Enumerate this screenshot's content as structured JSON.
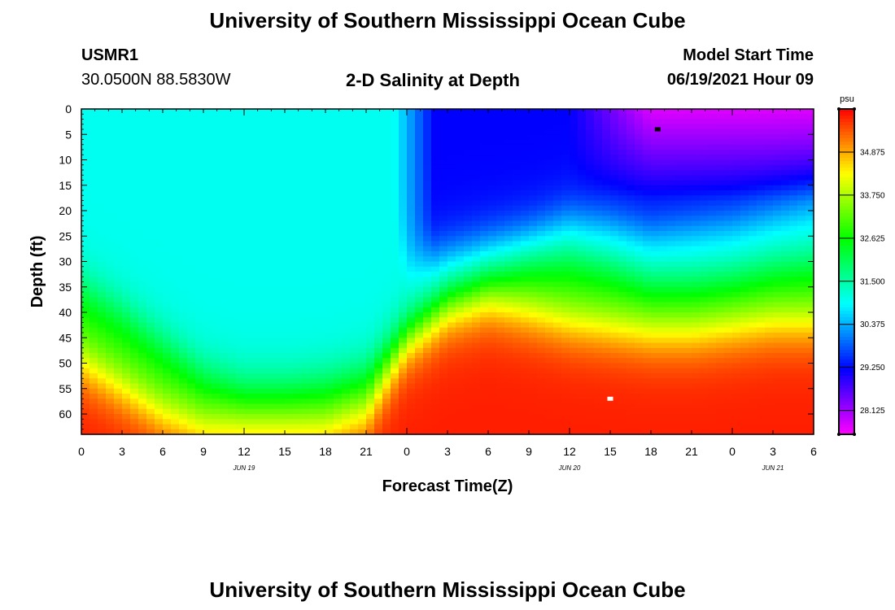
{
  "header": {
    "title": "University of Southern Mississippi Ocean Cube",
    "station_id": "USMR1",
    "station_coords": "30.0500N  88.5830W",
    "plot_title": "2-D Salinity at Depth",
    "model_start_label": "Model Start Time",
    "model_start_value": "06/19/2021 Hour 09"
  },
  "footer": {
    "title": "University of Southern Mississippi Ocean Cube"
  },
  "chart_data": {
    "type": "heatmap",
    "variable": "Salinity",
    "units": "psu",
    "xlabel": "Forecast Time(Z)",
    "ylabel": "Depth (ft)",
    "x_range_hours": [
      0,
      54
    ],
    "x_ticks": [
      "0",
      "3",
      "6",
      "9",
      "12",
      "15",
      "18",
      "21",
      "0",
      "3",
      "6",
      "9",
      "12",
      "15",
      "18",
      "21",
      "0",
      "3",
      "6"
    ],
    "x_date_labels": [
      {
        "hour": 12,
        "label": "JUN 19"
      },
      {
        "hour": 36,
        "label": "JUN 20"
      },
      {
        "hour": 51,
        "label": "JUN 21"
      }
    ],
    "y_range_ft": [
      0,
      64
    ],
    "y_ticks": [
      0,
      5,
      10,
      15,
      20,
      25,
      30,
      35,
      40,
      45,
      50,
      55,
      60
    ],
    "colorbar": {
      "min": 27.5,
      "max": 36.0,
      "labels": [
        "34.875",
        "33.750",
        "32.625",
        "31.500",
        "30.375",
        "29.250",
        "28.125"
      ],
      "tick_values": [
        34.875,
        33.75,
        32.625,
        31.5,
        30.375,
        29.25,
        28.125
      ]
    },
    "markers": [
      {
        "name": "min-salinity-marker",
        "hour": 42.5,
        "depth_ft": 4,
        "color": "#000000"
      },
      {
        "name": "max-salinity-marker",
        "hour": 39,
        "depth_ft": 57,
        "color": "#ffffff"
      }
    ],
    "layer_profiles": {
      "x_hours": [
        0,
        3,
        6,
        9,
        12,
        15,
        18,
        21,
        24,
        27,
        30,
        33,
        36,
        39,
        42,
        45,
        48,
        51,
        54
      ],
      "halocline_depth_ft": [
        35,
        40,
        46,
        52,
        55,
        55,
        54,
        52,
        44,
        37,
        33,
        30,
        29,
        31,
        34,
        34,
        33,
        31,
        30
      ],
      "bottom_depth_ft": [
        50,
        55,
        60,
        63,
        63,
        63,
        63,
        60,
        46,
        40,
        38,
        40,
        42,
        43,
        44,
        44,
        43,
        42,
        42
      ],
      "surface_fresh_depth_ft": [
        0,
        0,
        0,
        0,
        0,
        0,
        0,
        0,
        30,
        28,
        26,
        24,
        21,
        22,
        24,
        23,
        22,
        20,
        18
      ]
    }
  }
}
